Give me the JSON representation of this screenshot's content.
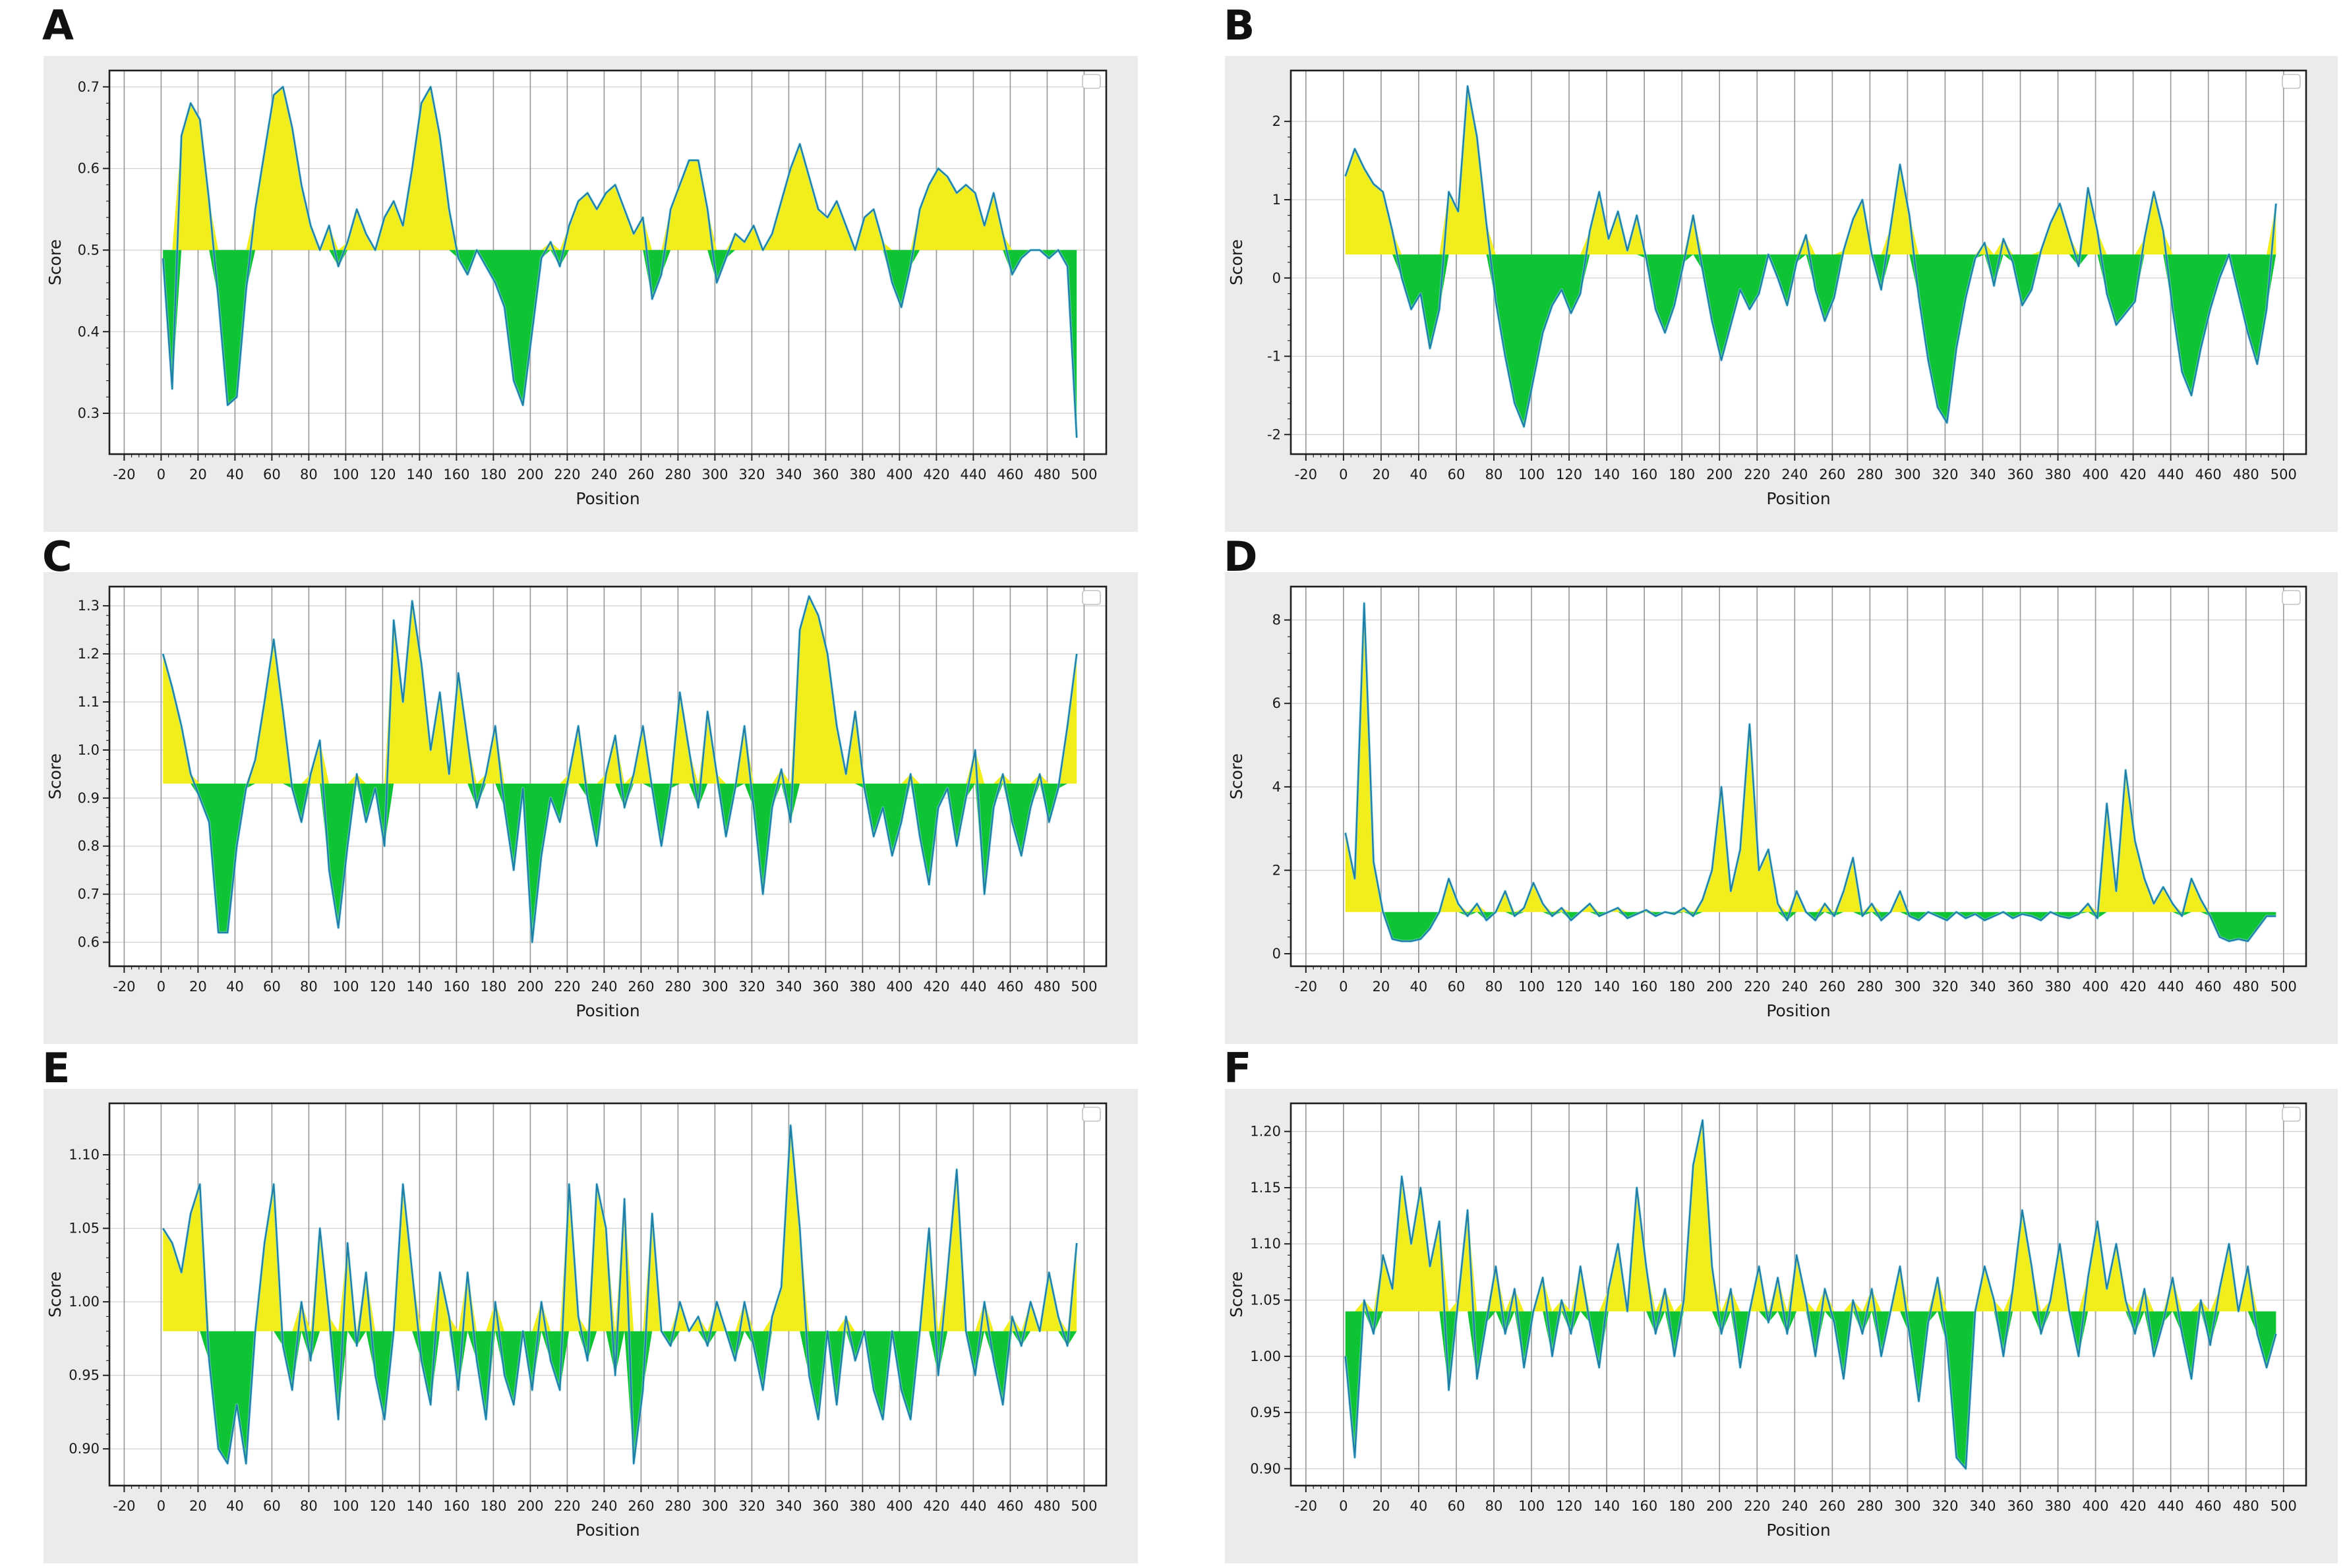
{
  "figure": {
    "background": "#ffffff",
    "panel_background": "#ebebeb",
    "plot_background": "#ffffff",
    "line_color": "#1f7fa6",
    "line_halo": "#8fdcef",
    "fill_above_color": "#f2ee1c",
    "fill_below_color": "#0fc434",
    "grid_x_color": "#9b9b9b",
    "grid_y_color": "#d8cfcf",
    "spine_color": "#1f1f1f",
    "tick_color": "#1a1a1a"
  },
  "x_axis": {
    "label": "Position",
    "min": -28,
    "max": 512,
    "tick_start": -20,
    "tick_end": 500,
    "tick_step": 20,
    "minor_step": 4
  },
  "chart_data": [
    {
      "id": "a",
      "label": "A",
      "type": "line",
      "ylabel": "Score",
      "xlabel": "Position",
      "legend_box": true,
      "threshold": 0.5,
      "ylim": [
        0.25,
        0.72
      ],
      "yticks": [
        {
          "v": 0.3,
          "label": "0.3"
        },
        {
          "v": 0.4,
          "label": "0.4"
        },
        {
          "v": 0.5,
          "label": "0.5"
        },
        {
          "v": 0.6,
          "label": "0.6"
        },
        {
          "v": 0.7,
          "label": "0.7"
        }
      ],
      "series": {
        "x_start": 1,
        "x_step": 5,
        "y": [
          0.49,
          0.33,
          0.64,
          0.68,
          0.66,
          0.56,
          0.44,
          0.31,
          0.32,
          0.45,
          0.55,
          0.62,
          0.69,
          0.7,
          0.65,
          0.58,
          0.53,
          0.5,
          0.53,
          0.48,
          0.51,
          0.55,
          0.52,
          0.5,
          0.54,
          0.56,
          0.53,
          0.6,
          0.68,
          0.7,
          0.64,
          0.55,
          0.49,
          0.47,
          0.5,
          0.48,
          0.46,
          0.43,
          0.34,
          0.31,
          0.4,
          0.49,
          0.51,
          0.48,
          0.53,
          0.56,
          0.57,
          0.55,
          0.57,
          0.58,
          0.55,
          0.52,
          0.54,
          0.44,
          0.47,
          0.55,
          0.58,
          0.61,
          0.61,
          0.55,
          0.46,
          0.49,
          0.52,
          0.51,
          0.53,
          0.5,
          0.52,
          0.56,
          0.6,
          0.63,
          0.59,
          0.55,
          0.54,
          0.56,
          0.53,
          0.5,
          0.54,
          0.55,
          0.51,
          0.46,
          0.43,
          0.48,
          0.55,
          0.58,
          0.6,
          0.59,
          0.57,
          0.58,
          0.57,
          0.53,
          0.57,
          0.52,
          0.47,
          0.49,
          0.5,
          0.5,
          0.49,
          0.5,
          0.48,
          0.27
        ]
      }
    },
    {
      "id": "b",
      "label": "B",
      "type": "line",
      "ylabel": "Score",
      "xlabel": "Position",
      "legend_box": true,
      "threshold": 0.3,
      "ylim": [
        -2.25,
        2.65
      ],
      "yticks": [
        {
          "v": -2,
          "label": "-2"
        },
        {
          "v": -1,
          "label": "-1"
        },
        {
          "v": 0,
          "label": "0"
        },
        {
          "v": 1,
          "label": "1"
        },
        {
          "v": 2,
          "label": "2"
        }
      ],
      "series": {
        "x_start": 1,
        "x_step": 5,
        "y": [
          1.3,
          1.65,
          1.4,
          1.2,
          1.1,
          0.6,
          0.0,
          -0.4,
          -0.2,
          -0.9,
          -0.4,
          1.1,
          0.85,
          2.45,
          1.8,
          0.7,
          -0.3,
          -1.0,
          -1.6,
          -1.9,
          -1.3,
          -0.7,
          -0.35,
          -0.15,
          -0.45,
          -0.2,
          0.6,
          1.1,
          0.5,
          0.85,
          0.35,
          0.8,
          0.25,
          -0.4,
          -0.7,
          -0.35,
          0.2,
          0.8,
          0.1,
          -0.55,
          -1.05,
          -0.6,
          -0.15,
          -0.4,
          -0.2,
          0.3,
          0.0,
          -0.35,
          0.2,
          0.55,
          -0.15,
          -0.55,
          -0.25,
          0.35,
          0.75,
          1.0,
          0.3,
          -0.15,
          0.65,
          1.45,
          0.8,
          -0.25,
          -1.05,
          -1.65,
          -1.85,
          -0.9,
          -0.25,
          0.25,
          0.45,
          -0.1,
          0.5,
          0.2,
          -0.35,
          -0.15,
          0.35,
          0.7,
          0.95,
          0.55,
          0.15,
          1.15,
          0.6,
          -0.2,
          -0.6,
          -0.45,
          -0.3,
          0.5,
          1.1,
          0.6,
          -0.4,
          -1.2,
          -1.5,
          -0.9,
          -0.4,
          0.0,
          0.3,
          -0.2,
          -0.7,
          -1.1,
          -0.4,
          0.95
        ]
      }
    },
    {
      "id": "c",
      "label": "C",
      "type": "line",
      "ylabel": "Score",
      "xlabel": "Position",
      "legend_box": true,
      "threshold": 0.93,
      "ylim": [
        0.55,
        1.34
      ],
      "yticks": [
        {
          "v": 0.6,
          "label": "0.6"
        },
        {
          "v": 0.7,
          "label": "0.7"
        },
        {
          "v": 0.8,
          "label": "0.8"
        },
        {
          "v": 0.9,
          "label": "0.9"
        },
        {
          "v": 1.0,
          "label": "1.0"
        },
        {
          "v": 1.1,
          "label": "1.1"
        },
        {
          "v": 1.2,
          "label": "1.2"
        },
        {
          "v": 1.3,
          "label": "1.3"
        }
      ],
      "series": {
        "x_start": 1,
        "x_step": 5,
        "y": [
          1.2,
          1.13,
          1.05,
          0.95,
          0.9,
          0.85,
          0.62,
          0.62,
          0.8,
          0.92,
          0.98,
          1.1,
          1.23,
          1.08,
          0.92,
          0.85,
          0.95,
          1.02,
          0.75,
          0.63,
          0.8,
          0.95,
          0.85,
          0.92,
          0.8,
          1.27,
          1.1,
          1.31,
          1.18,
          1.0,
          1.12,
          0.95,
          1.16,
          1.02,
          0.88,
          0.95,
          1.05,
          0.88,
          0.75,
          0.92,
          0.6,
          0.78,
          0.9,
          0.85,
          0.95,
          1.05,
          0.9,
          0.8,
          0.95,
          1.03,
          0.88,
          0.95,
          1.05,
          0.92,
          0.8,
          0.92,
          1.12,
          1.0,
          0.88,
          1.08,
          0.95,
          0.82,
          0.92,
          1.05,
          0.88,
          0.7,
          0.88,
          0.96,
          0.85,
          1.25,
          1.32,
          1.28,
          1.2,
          1.05,
          0.95,
          1.08,
          0.92,
          0.82,
          0.88,
          0.78,
          0.85,
          0.95,
          0.82,
          0.72,
          0.88,
          0.92,
          0.8,
          0.9,
          1.0,
          0.7,
          0.88,
          0.95,
          0.85,
          0.78,
          0.88,
          0.95,
          0.85,
          0.92,
          1.05,
          1.2
        ]
      }
    },
    {
      "id": "d",
      "label": "D",
      "type": "line",
      "ylabel": "Score",
      "xlabel": "Position",
      "legend_box": true,
      "threshold": 1.0,
      "ylim": [
        -0.3,
        8.8
      ],
      "yticks": [
        {
          "v": 0,
          "label": "0"
        },
        {
          "v": 2,
          "label": "2"
        },
        {
          "v": 4,
          "label": "4"
        },
        {
          "v": 6,
          "label": "6"
        },
        {
          "v": 8,
          "label": "8"
        }
      ],
      "series": {
        "x_start": 1,
        "x_step": 5,
        "y": [
          2.9,
          1.8,
          8.4,
          2.2,
          1.0,
          0.35,
          0.3,
          0.3,
          0.35,
          0.6,
          1.0,
          1.8,
          1.2,
          0.9,
          1.2,
          0.8,
          1.0,
          1.5,
          0.9,
          1.1,
          1.7,
          1.2,
          0.9,
          1.1,
          0.8,
          1.0,
          1.2,
          0.9,
          1.0,
          1.1,
          0.85,
          0.95,
          1.05,
          0.9,
          1.0,
          0.95,
          1.1,
          0.9,
          1.3,
          2.0,
          4.0,
          1.5,
          2.5,
          5.5,
          2.0,
          2.5,
          1.2,
          0.8,
          1.5,
          1.0,
          0.8,
          1.2,
          0.9,
          1.5,
          2.3,
          0.9,
          1.2,
          0.8,
          1.0,
          1.5,
          0.9,
          0.8,
          1.0,
          0.9,
          0.8,
          1.0,
          0.85,
          0.95,
          0.8,
          0.9,
          1.0,
          0.85,
          0.95,
          0.9,
          0.8,
          1.0,
          0.9,
          0.85,
          0.95,
          1.2,
          0.85,
          3.6,
          1.5,
          4.4,
          2.7,
          1.8,
          1.2,
          1.6,
          1.2,
          0.9,
          1.8,
          1.3,
          0.9,
          0.4,
          0.3,
          0.35,
          0.3,
          0.6,
          0.9,
          0.9
        ]
      }
    },
    {
      "id": "e",
      "label": "E",
      "type": "line",
      "ylabel": "Score",
      "xlabel": "Position",
      "legend_box": true,
      "threshold": 0.98,
      "ylim": [
        0.875,
        1.135
      ],
      "yticks": [
        {
          "v": 0.9,
          "label": "0.90"
        },
        {
          "v": 0.95,
          "label": "0.95"
        },
        {
          "v": 1.0,
          "label": "1.00"
        },
        {
          "v": 1.05,
          "label": "1.05"
        },
        {
          "v": 1.1,
          "label": "1.10"
        }
      ],
      "series": {
        "x_start": 1,
        "x_step": 5,
        "y": [
          1.05,
          1.04,
          1.02,
          1.06,
          1.08,
          0.96,
          0.9,
          0.89,
          0.93,
          0.89,
          0.98,
          1.04,
          1.08,
          0.97,
          0.94,
          1.0,
          0.96,
          1.05,
          0.99,
          0.92,
          1.04,
          0.97,
          1.02,
          0.95,
          0.92,
          0.98,
          1.08,
          1.02,
          0.96,
          0.93,
          1.02,
          0.99,
          0.94,
          1.02,
          0.96,
          0.92,
          1.0,
          0.95,
          0.93,
          0.98,
          0.94,
          1.0,
          0.96,
          0.94,
          1.08,
          0.99,
          0.96,
          1.08,
          1.05,
          0.95,
          1.07,
          0.89,
          0.94,
          1.06,
          0.98,
          0.97,
          1.0,
          0.98,
          0.99,
          0.97,
          1.0,
          0.98,
          0.96,
          1.0,
          0.97,
          0.94,
          0.99,
          1.01,
          1.12,
          1.05,
          0.95,
          0.92,
          0.98,
          0.93,
          0.99,
          0.96,
          0.98,
          0.94,
          0.92,
          0.98,
          0.94,
          0.92,
          0.98,
          1.05,
          0.95,
          1.02,
          1.09,
          0.98,
          0.95,
          1.0,
          0.96,
          0.93,
          0.99,
          0.97,
          1.0,
          0.98,
          1.02,
          0.99,
          0.97,
          1.04
        ]
      }
    },
    {
      "id": "f",
      "label": "F",
      "type": "line",
      "ylabel": "Score",
      "xlabel": "Position",
      "legend_box": true,
      "threshold": 1.04,
      "ylim": [
        0.885,
        1.225
      ],
      "yticks": [
        {
          "v": 0.9,
          "label": "0.90"
        },
        {
          "v": 0.95,
          "label": "0.95"
        },
        {
          "v": 1.0,
          "label": "1.00"
        },
        {
          "v": 1.05,
          "label": "1.05"
        },
        {
          "v": 1.1,
          "label": "1.10"
        },
        {
          "v": 1.15,
          "label": "1.15"
        },
        {
          "v": 1.2,
          "label": "1.20"
        }
      ],
      "series": {
        "x_start": 1,
        "x_step": 5,
        "y": [
          1.0,
          0.91,
          1.05,
          1.02,
          1.09,
          1.06,
          1.16,
          1.1,
          1.15,
          1.08,
          1.12,
          0.97,
          1.05,
          1.13,
          0.98,
          1.03,
          1.08,
          1.02,
          1.06,
          0.99,
          1.04,
          1.07,
          1.0,
          1.05,
          1.02,
          1.08,
          1.03,
          0.99,
          1.06,
          1.1,
          1.04,
          1.15,
          1.08,
          1.02,
          1.06,
          1.0,
          1.05,
          1.17,
          1.21,
          1.08,
          1.02,
          1.06,
          0.99,
          1.04,
          1.08,
          1.03,
          1.07,
          1.02,
          1.09,
          1.05,
          1.0,
          1.06,
          1.03,
          0.98,
          1.05,
          1.02,
          1.06,
          1.0,
          1.04,
          1.08,
          1.02,
          0.96,
          1.03,
          1.07,
          1.01,
          0.91,
          0.9,
          1.04,
          1.08,
          1.05,
          1.0,
          1.06,
          1.13,
          1.08,
          1.02,
          1.05,
          1.1,
          1.04,
          1.0,
          1.07,
          1.12,
          1.06,
          1.1,
          1.05,
          1.02,
          1.06,
          1.0,
          1.03,
          1.07,
          1.02,
          0.98,
          1.05,
          1.01,
          1.06,
          1.1,
          1.04,
          1.08,
          1.02,
          0.99,
          1.02
        ]
      }
    }
  ]
}
